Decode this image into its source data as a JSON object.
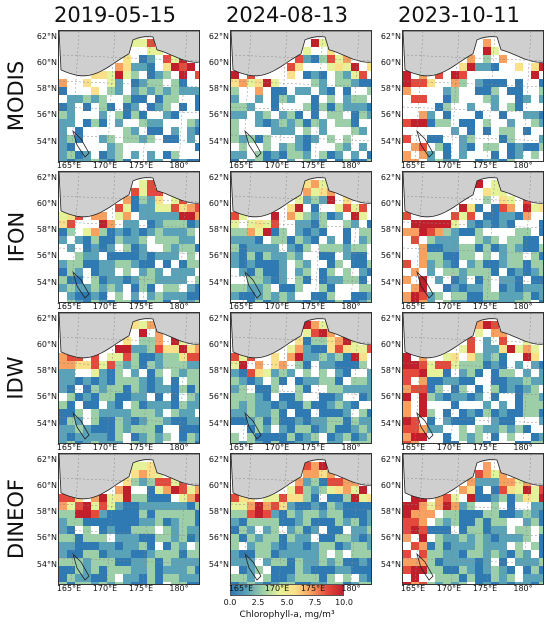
{
  "columns": [
    "2019-05-15",
    "2024-08-13",
    "2023-10-11"
  ],
  "rows": [
    "MODIS",
    "IFON",
    "IDW",
    "DINEOF"
  ],
  "lat_ticks": [
    "62°N",
    "60°N",
    "58°N",
    "56°N",
    "54°N"
  ],
  "lon_ticks": [
    "165°E",
    "170°E",
    "175°E",
    "180°"
  ],
  "colorbar": {
    "ticks": [
      "0.0",
      "2.5",
      "5.0",
      "7.5",
      "10.0"
    ],
    "label": "Chlorophyll-a, mg/m³",
    "range": [
      0,
      10
    ],
    "colors": [
      "#2f7ab3",
      "#5aa2b8",
      "#9ccfa8",
      "#e6f29a",
      "#fbe08a",
      "#f7a060",
      "#e44a3b",
      "#c21f2c"
    ]
  },
  "colors": {
    "land": "#cfcfcf",
    "coast": "#222222",
    "grid": "#888888",
    "missing": "#ffffff"
  }
}
